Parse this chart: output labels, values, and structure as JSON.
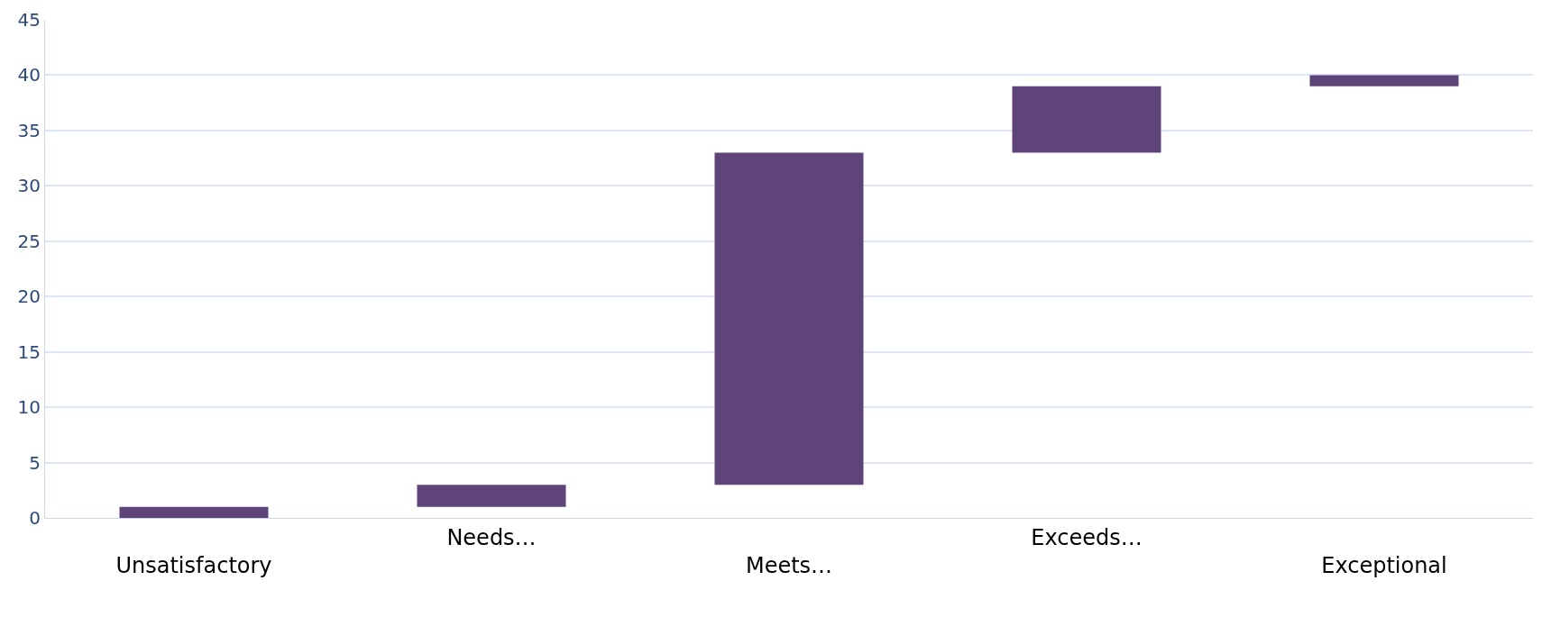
{
  "chart_data": {
    "type": "bar",
    "categories": [
      "Unsatisfactory",
      "Needs…",
      "Meets…",
      "Exceeds…",
      "Exceptional"
    ],
    "values": [
      1,
      2,
      30,
      6,
      1
    ],
    "base": [
      0,
      1,
      3,
      33,
      39
    ],
    "color": "#5e4479",
    "ylim": [
      0,
      45
    ],
    "yticks": [
      0,
      5,
      10,
      15,
      20,
      25,
      30,
      35,
      40,
      45
    ],
    "grid": "y",
    "legend": false
  }
}
